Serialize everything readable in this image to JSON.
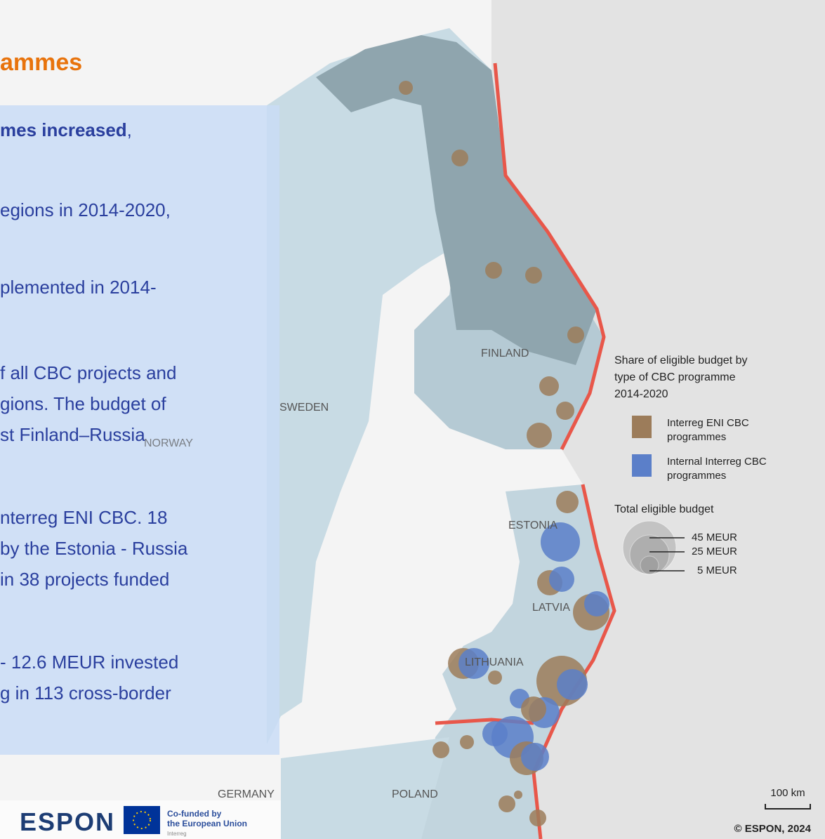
{
  "heading": "ammes",
  "text_box": {
    "lead_bold": "mes increased",
    "lead_rest": ",",
    "paragraphs": [
      [
        "egions in 2014-2020,"
      ],
      [
        "plemented in 2014-"
      ],
      [
        "f all CBC projects and",
        "gions. The budget of",
        "st Finland–Russia"
      ],
      [
        "nterreg ENI CBC. 18",
        "by the Estonia - Russia",
        " in 38 projects funded"
      ],
      [
        "- 12.6 MEUR invested",
        "g in 113 cross-border"
      ]
    ]
  },
  "map": {
    "labels": [
      "FINLAND",
      "SWEDEN",
      "NORWAY",
      "ESTONIA",
      "LATVIA",
      "LITHUANIA",
      "GERMANY",
      "POLAND"
    ]
  },
  "legend": {
    "title": [
      "Share of eligible budget by",
      "type of CBC programme",
      "2014-2020"
    ],
    "items": [
      {
        "label": [
          "Interreg ENI CBC",
          "programmes"
        ],
        "color": "#9c7c5a"
      },
      {
        "label": [
          "Internal Interreg CBC",
          "programmes"
        ],
        "color": "#5b7fc9"
      }
    ],
    "size_title": "Total eligible budget",
    "sizes": [
      "45 MEUR",
      "25 MEUR",
      "5 MEUR"
    ]
  },
  "scale": "100 km",
  "copyright": "© ESPON, 2024",
  "footer": {
    "logo": "ESPON",
    "eu_label": [
      "Co-funded by",
      "the European Union"
    ],
    "sub": "Interreg"
  }
}
